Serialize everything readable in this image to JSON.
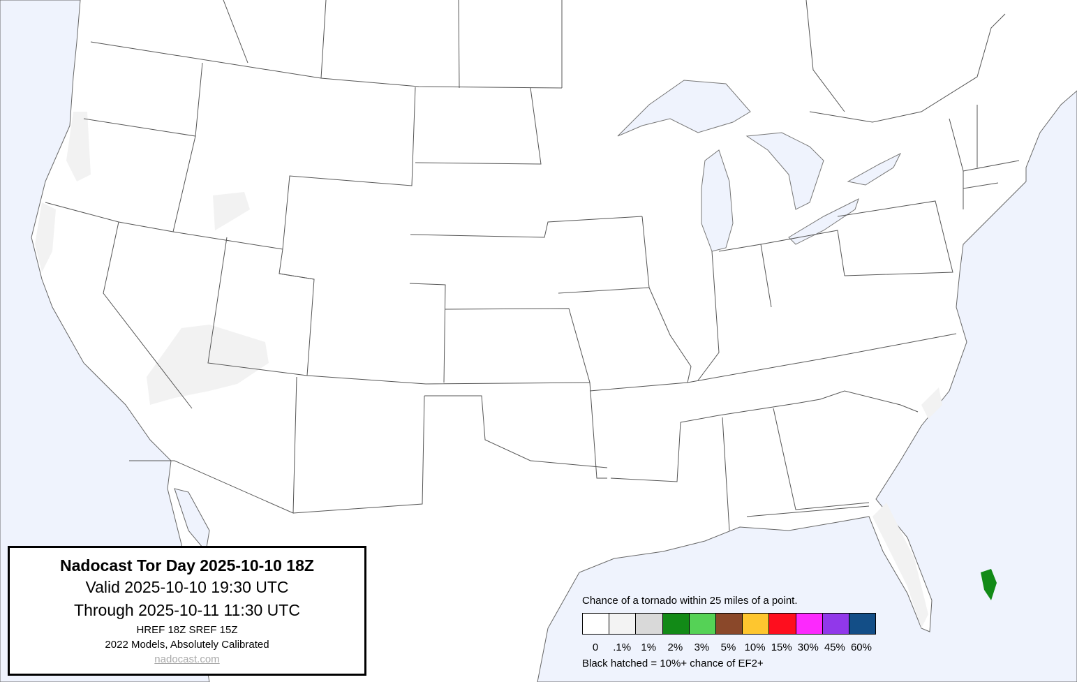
{
  "colors": {
    "ocean": "#eff3fd",
    "land": "#ffffff",
    "border": "#555555",
    "low_prob": "#f2f2f2"
  },
  "title_box": {
    "title": "Nadocast Tor Day 2025-10-10 18Z",
    "valid": "Valid 2025-10-10 19:30 UTC",
    "through": "Through 2025-10-11 11:30 UTC",
    "models": "HREF 18Z SREF 15Z",
    "calibration": "2022 Models, Absolutely Calibrated",
    "link": "nadocast.com"
  },
  "legend": {
    "title": "Chance of a tornado within 25 miles of a point.",
    "bins": [
      {
        "label": "0",
        "color": "#ffffff"
      },
      {
        "label": ".1%",
        "color": "#f3f3f3"
      },
      {
        "label": "1%",
        "color": "#d9d9d9"
      },
      {
        "label": "2%",
        "color": "#128a17"
      },
      {
        "label": "3%",
        "color": "#55d256"
      },
      {
        "label": "5%",
        "color": "#8a482a"
      },
      {
        "label": "10%",
        "color": "#fec62f"
      },
      {
        "label": "15%",
        "color": "#fe0e1e"
      },
      {
        "label": "30%",
        "color": "#fc29fd"
      },
      {
        "label": "45%",
        "color": "#9138ea"
      },
      {
        "label": "60%",
        "color": "#134e87"
      }
    ],
    "note": "Black hatched = 10%+ chance of EF2+"
  }
}
